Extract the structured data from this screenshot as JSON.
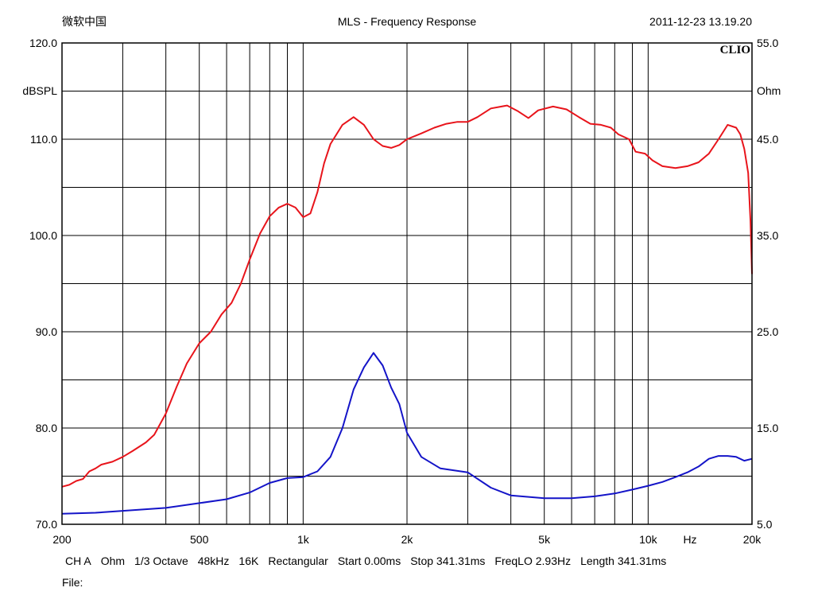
{
  "header": {
    "left": "微软中国",
    "title": "MLS - Frequency Response",
    "datetime": "2011-12-23 13.19.20"
  },
  "brand": "CLIO",
  "footer": {
    "channel": "CH A",
    "unit": "Ohm",
    "smoothing": "1/3 Octave",
    "rate": "48kHz",
    "size": "16K",
    "window": "Rectangular",
    "start": "Start 0.00ms",
    "stop": "Stop 341.31ms",
    "freqlo": "FreqLO 2.93Hz",
    "length": "Length 341.31ms",
    "file": "File:"
  },
  "chart_data": {
    "type": "line",
    "title": "MLS - Frequency Response",
    "x_scale": "log",
    "xlim": [
      200,
      20000
    ],
    "x_ticks": [
      {
        "value": 200,
        "label": "200"
      },
      {
        "value": 500,
        "label": "500"
      },
      {
        "value": 1000,
        "label": "1k"
      },
      {
        "value": 2000,
        "label": "2k"
      },
      {
        "value": 5000,
        "label": "5k"
      },
      {
        "value": 10000,
        "label": "10k"
      },
      {
        "value": 20000,
        "label": "20k"
      }
    ],
    "x_unit_label": "Hz",
    "y_left": {
      "label": "dBSPL",
      "lim": [
        70,
        120
      ],
      "ticks": [
        "70.0",
        "80.0",
        "90.0",
        "100.0",
        "110.0",
        "120.0"
      ]
    },
    "y_right": {
      "label": "Ohm",
      "lim": [
        5,
        55
      ],
      "ticks": [
        "5.0",
        "15.0",
        "25.0",
        "35.0",
        "45.0",
        "55.0"
      ]
    },
    "grid": true,
    "series": [
      {
        "axis": "left",
        "color": "#e8141b",
        "points": [
          [
            200,
            73.9
          ],
          [
            210,
            74.1
          ],
          [
            220,
            74.5
          ],
          [
            230,
            74.7
          ],
          [
            240,
            75.5
          ],
          [
            250,
            75.8
          ],
          [
            260,
            76.2
          ],
          [
            280,
            76.5
          ],
          [
            300,
            77.0
          ],
          [
            320,
            77.6
          ],
          [
            350,
            78.5
          ],
          [
            370,
            79.3
          ],
          [
            400,
            81.5
          ],
          [
            430,
            84.3
          ],
          [
            460,
            86.7
          ],
          [
            500,
            88.8
          ],
          [
            540,
            90.0
          ],
          [
            580,
            91.8
          ],
          [
            620,
            93.0
          ],
          [
            660,
            95.0
          ],
          [
            700,
            97.5
          ],
          [
            750,
            100.2
          ],
          [
            800,
            102.0
          ],
          [
            850,
            102.9
          ],
          [
            900,
            103.3
          ],
          [
            950,
            102.9
          ],
          [
            1000,
            101.9
          ],
          [
            1050,
            102.3
          ],
          [
            1100,
            104.5
          ],
          [
            1150,
            107.5
          ],
          [
            1200,
            109.5
          ],
          [
            1300,
            111.5
          ],
          [
            1400,
            112.3
          ],
          [
            1500,
            111.5
          ],
          [
            1600,
            110.0
          ],
          [
            1700,
            109.3
          ],
          [
            1800,
            109.1
          ],
          [
            1900,
            109.4
          ],
          [
            2000,
            110.0
          ],
          [
            2200,
            110.6
          ],
          [
            2400,
            111.2
          ],
          [
            2600,
            111.6
          ],
          [
            2800,
            111.8
          ],
          [
            3000,
            111.8
          ],
          [
            3200,
            112.3
          ],
          [
            3500,
            113.2
          ],
          [
            3900,
            113.5
          ],
          [
            4200,
            112.9
          ],
          [
            4500,
            112.2
          ],
          [
            4800,
            113.0
          ],
          [
            5300,
            113.4
          ],
          [
            5800,
            113.1
          ],
          [
            6300,
            112.3
          ],
          [
            6800,
            111.6
          ],
          [
            7300,
            111.5
          ],
          [
            7800,
            111.2
          ],
          [
            8200,
            110.5
          ],
          [
            8800,
            110.0
          ],
          [
            9200,
            108.7
          ],
          [
            9800,
            108.5
          ],
          [
            10300,
            107.8
          ],
          [
            11000,
            107.2
          ],
          [
            12000,
            107.0
          ],
          [
            13000,
            107.2
          ],
          [
            14000,
            107.6
          ],
          [
            15000,
            108.5
          ],
          [
            16000,
            110.0
          ],
          [
            17000,
            111.5
          ],
          [
            18000,
            111.2
          ],
          [
            18500,
            110.5
          ],
          [
            19000,
            109.0
          ],
          [
            19500,
            106.5
          ],
          [
            19800,
            101.5
          ],
          [
            20000,
            96.0
          ]
        ]
      },
      {
        "axis": "right",
        "color": "#1414c8",
        "points": [
          [
            200,
            6.1
          ],
          [
            250,
            6.2
          ],
          [
            300,
            6.4
          ],
          [
            400,
            6.7
          ],
          [
            500,
            7.2
          ],
          [
            600,
            7.6
          ],
          [
            700,
            8.3
          ],
          [
            800,
            9.3
          ],
          [
            900,
            9.8
          ],
          [
            1000,
            9.9
          ],
          [
            1100,
            10.5
          ],
          [
            1200,
            12.0
          ],
          [
            1300,
            15.0
          ],
          [
            1400,
            19.0
          ],
          [
            1500,
            21.3
          ],
          [
            1600,
            22.8
          ],
          [
            1700,
            21.5
          ],
          [
            1800,
            19.2
          ],
          [
            1900,
            17.5
          ],
          [
            2000,
            14.5
          ],
          [
            2200,
            12.0
          ],
          [
            2500,
            10.8
          ],
          [
            3000,
            10.4
          ],
          [
            3500,
            8.8
          ],
          [
            4000,
            8.0
          ],
          [
            5000,
            7.7
          ],
          [
            6000,
            7.7
          ],
          [
            7000,
            7.9
          ],
          [
            8000,
            8.2
          ],
          [
            9000,
            8.6
          ],
          [
            10000,
            9.0
          ],
          [
            11000,
            9.4
          ],
          [
            12000,
            9.9
          ],
          [
            13000,
            10.4
          ],
          [
            14000,
            11.0
          ],
          [
            15000,
            11.8
          ],
          [
            16000,
            12.1
          ],
          [
            17000,
            12.1
          ],
          [
            18000,
            12.0
          ],
          [
            19000,
            11.6
          ],
          [
            20000,
            11.8
          ]
        ]
      }
    ]
  }
}
